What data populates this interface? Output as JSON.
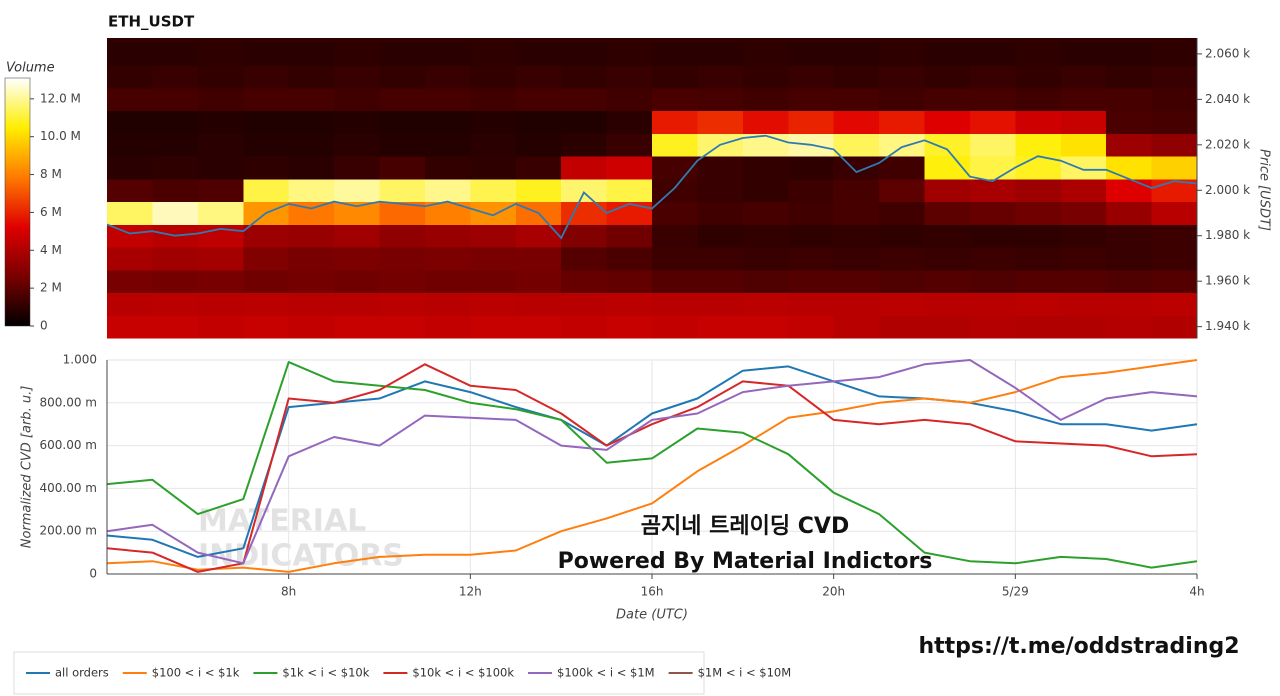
{
  "chart_data": [
    {
      "type": "heatmap",
      "title": "ETH_USDT",
      "colorbar_title": "Volume",
      "y_label": "Price [USDT]",
      "xlim": [
        4,
        28
      ],
      "ylim": [
        1935,
        2067
      ],
      "x_bins": [
        4,
        5,
        6,
        7,
        8,
        9,
        10,
        11,
        12,
        13,
        14,
        15,
        16,
        17,
        18,
        19,
        20,
        21,
        22,
        23,
        24,
        25,
        26,
        27,
        28
      ],
      "y_bins": [
        1935,
        1945,
        1955,
        1965,
        1975,
        1985,
        1995,
        2005,
        2015,
        2025,
        2035,
        2045,
        2055,
        2065
      ],
      "values": [
        [
          4.6,
          4.6,
          4.5,
          4.6,
          4.5,
          4.6,
          4.6,
          4.5,
          4.6,
          4.6,
          4.5,
          4.6,
          4.5,
          4.6,
          4.6,
          4.5,
          4.2,
          4.0,
          4.0,
          4.1,
          4.0,
          4.0,
          4.1,
          4.0
        ],
        [
          4.2,
          4.3,
          4.2,
          4.3,
          4.2,
          4.2,
          4.3,
          4.2,
          4.3,
          4.2,
          4.2,
          4.3,
          4.2,
          4.2,
          4.3,
          4.2,
          4.2,
          4.3,
          4.2,
          4.2,
          4.3,
          4.2,
          4.2,
          4.3
        ],
        [
          2.6,
          2.5,
          2.6,
          2.4,
          2.5,
          2.4,
          2.5,
          2.4,
          2.4,
          2.5,
          2.2,
          2.1,
          1.8,
          1.8,
          1.7,
          1.8,
          1.8,
          1.7,
          1.8,
          1.7,
          1.8,
          1.8,
          1.7,
          1.8
        ],
        [
          3.8,
          3.6,
          3.7,
          2.8,
          2.6,
          2.7,
          2.6,
          2.7,
          2.6,
          2.6,
          1.8,
          1.6,
          1.3,
          1.3,
          1.2,
          1.3,
          1.2,
          1.3,
          1.2,
          1.3,
          1.2,
          1.3,
          1.2,
          1.3
        ],
        [
          4.5,
          4.2,
          4.4,
          3.5,
          3.4,
          3.6,
          3.2,
          3.4,
          3.5,
          3.8,
          2.8,
          2.4,
          1.2,
          1.0,
          1.1,
          1.0,
          1.1,
          1.0,
          1.1,
          1.0,
          1.0,
          1.1,
          1.2,
          1.3
        ],
        [
          11.5,
          12.4,
          11.8,
          8.5,
          7.8,
          8.2,
          7.5,
          8.0,
          8.4,
          7.6,
          6.2,
          5.8,
          1.6,
          1.4,
          1.5,
          1.4,
          1.5,
          1.4,
          2.0,
          2.2,
          2.4,
          2.6,
          3.4,
          4.2
        ],
        [
          1.8,
          1.6,
          1.7,
          11.2,
          11.8,
          12.1,
          11.5,
          11.9,
          11.3,
          10.8,
          11.6,
          11.2,
          1.4,
          1.2,
          1.1,
          1.3,
          1.5,
          2.0,
          3.6,
          3.8,
          3.5,
          3.9,
          5.2,
          5.8
        ],
        [
          0.9,
          1.0,
          0.9,
          1.0,
          0.9,
          1.2,
          1.5,
          1.1,
          1.0,
          1.2,
          4.5,
          4.8,
          1.5,
          1.2,
          1.1,
          1.0,
          1.2,
          1.4,
          10.6,
          11.2,
          10.8,
          11.5,
          10.2,
          9.8
        ],
        [
          0.8,
          0.8,
          0.9,
          0.8,
          0.8,
          0.9,
          0.8,
          0.8,
          0.9,
          0.8,
          0.9,
          1.2,
          10.8,
          11.6,
          11.9,
          12.2,
          11.4,
          11.8,
          10.9,
          11.5,
          10.6,
          10.2,
          3.5,
          3.2
        ],
        [
          0.7,
          0.7,
          0.8,
          0.7,
          0.7,
          0.8,
          0.7,
          0.7,
          0.8,
          0.7,
          0.7,
          0.9,
          5.8,
          6.2,
          5.5,
          6.0,
          5.4,
          5.8,
          5.2,
          5.6,
          4.8,
          4.6,
          1.6,
          1.5
        ],
        [
          1.5,
          1.5,
          1.4,
          1.5,
          1.5,
          1.4,
          1.5,
          1.5,
          1.4,
          1.5,
          1.5,
          1.4,
          1.6,
          1.5,
          1.4,
          1.5,
          1.5,
          1.4,
          1.5,
          1.5,
          1.4,
          1.5,
          1.5,
          1.4
        ],
        [
          1.1,
          1.2,
          1.1,
          1.2,
          1.1,
          1.2,
          1.1,
          1.2,
          1.1,
          1.2,
          1.1,
          1.2,
          1.1,
          1.2,
          1.1,
          1.2,
          1.1,
          1.2,
          1.1,
          1.2,
          1.1,
          1.2,
          1.1,
          1.2
        ],
        [
          0.9,
          0.9,
          1.0,
          0.9,
          0.9,
          1.0,
          0.9,
          0.9,
          1.0,
          0.9,
          0.9,
          1.0,
          0.9,
          0.9,
          1.0,
          0.9,
          0.9,
          1.0,
          0.9,
          0.9,
          1.0,
          0.9,
          0.9,
          1.0
        ]
      ],
      "clim": [
        0,
        13.1
      ],
      "colorscale": [
        "#000000",
        "#7a0000",
        "#e00000",
        "#ff7a00",
        "#ffee00",
        "#ffffff"
      ],
      "cticks": [
        0,
        {
          "value": 2,
          "label": "2 M"
        },
        {
          "value": 4,
          "label": "4 M"
        },
        {
          "value": 6,
          "label": "6 M"
        },
        {
          "value": 8,
          "label": "8 M"
        },
        {
          "value": 10,
          "label": "10.0 M"
        },
        {
          "value": 12,
          "label": "12.0 M"
        }
      ],
      "yticks": [
        {
          "value": 1940,
          "label": "1.940 k"
        },
        {
          "value": 1960,
          "label": "1.960 k"
        },
        {
          "value": 1980,
          "label": "1.980 k"
        },
        {
          "value": 2000,
          "label": "2.000 k"
        },
        {
          "value": 2020,
          "label": "2.020 k"
        },
        {
          "value": 2040,
          "label": "2.040 k"
        },
        {
          "value": 2060,
          "label": "2.060 k"
        }
      ],
      "price_line": {
        "color": "#2e7bb4",
        "x": [
          4,
          4.5,
          5,
          5.5,
          6,
          6.5,
          7,
          7.5,
          8,
          8.5,
          9,
          9.5,
          10,
          10.5,
          11,
          11.5,
          12,
          12.5,
          13,
          13.5,
          14,
          14.5,
          15,
          15.5,
          16,
          16.5,
          17,
          17.5,
          18,
          18.5,
          19,
          19.5,
          20,
          20.5,
          21,
          21.5,
          22,
          22.5,
          23,
          23.5,
          24,
          24.5,
          25,
          25.5,
          26,
          26.5,
          27,
          27.5,
          28
        ],
        "values": [
          1985,
          1981,
          1982,
          1980,
          1981,
          1983,
          1982,
          1990,
          1994,
          1992,
          1995,
          1993,
          1995,
          1994,
          1993,
          1995,
          1992,
          1989,
          1994,
          1990,
          1979,
          1999,
          1990,
          1994,
          1992,
          2001,
          2013,
          2020,
          2023,
          2024,
          2021,
          2020,
          2018,
          2008,
          2012,
          2019,
          2022,
          2018,
          2006,
          2004,
          2010,
          2015,
          2013,
          2009,
          2009,
          2005,
          2001,
          2004,
          2003
        ]
      }
    },
    {
      "type": "line",
      "y_label": "Normalized CVD [arb. u.]",
      "x_label": "Date (UTC)",
      "xlim": [
        4,
        28
      ],
      "ylim": [
        0,
        1
      ],
      "grid": true,
      "legend": "bottom-left",
      "xticks": [
        {
          "value": 8,
          "label": "8h"
        },
        {
          "value": 12,
          "label": "12h"
        },
        {
          "value": 16,
          "label": "16h"
        },
        {
          "value": 20,
          "label": "20h"
        },
        {
          "value": 24,
          "label": "5/29"
        },
        {
          "value": 28,
          "label": "4h"
        }
      ],
      "yticks": [
        0,
        {
          "value": 0.2,
          "label": "200.00 m"
        },
        {
          "value": 0.4,
          "label": "400.00 m"
        },
        {
          "value": 0.6,
          "label": "600.00 m"
        },
        {
          "value": 0.8,
          "label": "800.00 m"
        },
        {
          "value": 1,
          "label": "1.000"
        }
      ],
      "x": [
        4,
        5,
        6,
        7,
        8,
        9,
        10,
        11,
        12,
        13,
        14,
        15,
        16,
        17,
        18,
        19,
        20,
        21,
        22,
        23,
        24,
        25,
        26,
        27,
        28
      ],
      "series": [
        {
          "name": "all orders",
          "color": "#1f77b4",
          "values": [
            0.18,
            0.16,
            0.08,
            0.12,
            0.78,
            0.8,
            0.82,
            0.9,
            0.85,
            0.78,
            0.72,
            0.6,
            0.75,
            0.82,
            0.95,
            0.97,
            0.9,
            0.83,
            0.82,
            0.8,
            0.76,
            0.7,
            0.7,
            0.67,
            0.7
          ]
        },
        {
          "name": "$100 < i < $1k",
          "color": "#ff7f0e",
          "values": [
            0.05,
            0.06,
            0.02,
            0.03,
            0.01,
            0.05,
            0.08,
            0.09,
            0.09,
            0.11,
            0.2,
            0.26,
            0.33,
            0.48,
            0.6,
            0.73,
            0.76,
            0.8,
            0.82,
            0.8,
            0.85,
            0.92,
            0.94,
            0.97,
            1.0
          ]
        },
        {
          "name": "$1k < i < $10k",
          "color": "#2ca02c",
          "values": [
            0.42,
            0.44,
            0.28,
            0.35,
            0.99,
            0.9,
            0.88,
            0.86,
            0.8,
            0.77,
            0.72,
            0.52,
            0.54,
            0.68,
            0.66,
            0.56,
            0.38,
            0.28,
            0.1,
            0.06,
            0.05,
            0.08,
            0.07,
            0.03,
            0.06
          ]
        },
        {
          "name": "$10k < i < $100k",
          "color": "#d62728",
          "values": [
            0.12,
            0.1,
            0.01,
            0.05,
            0.82,
            0.8,
            0.86,
            0.98,
            0.88,
            0.86,
            0.75,
            0.6,
            0.7,
            0.78,
            0.9,
            0.88,
            0.72,
            0.7,
            0.72,
            0.7,
            0.62,
            0.61,
            0.6,
            0.55,
            0.56
          ]
        },
        {
          "name": "$100k < i < $1M",
          "color": "#9467bd",
          "values": [
            0.2,
            0.23,
            0.1,
            0.05,
            0.55,
            0.64,
            0.6,
            0.74,
            0.73,
            0.72,
            0.6,
            0.58,
            0.72,
            0.75,
            0.85,
            0.88,
            0.9,
            0.92,
            0.98,
            1.0,
            0.87,
            0.72,
            0.82,
            0.85,
            0.83
          ]
        },
        {
          "name": "$1M < i < $10M",
          "color": "#8c564b",
          "values": [
            null,
            null,
            null,
            null,
            null,
            null,
            null,
            null,
            null,
            null,
            null,
            null,
            null,
            null,
            null,
            null,
            null,
            null,
            null,
            null,
            null,
            null,
            null,
            null,
            null
          ]
        }
      ]
    }
  ],
  "watermark": [
    "MATERIAL",
    "INDICATORS"
  ],
  "overlay": {
    "title": "곰지네 트레이딩 CVD",
    "subtitle": "Powered By Material Indictors",
    "link": "https://t.me/oddstrading2"
  }
}
